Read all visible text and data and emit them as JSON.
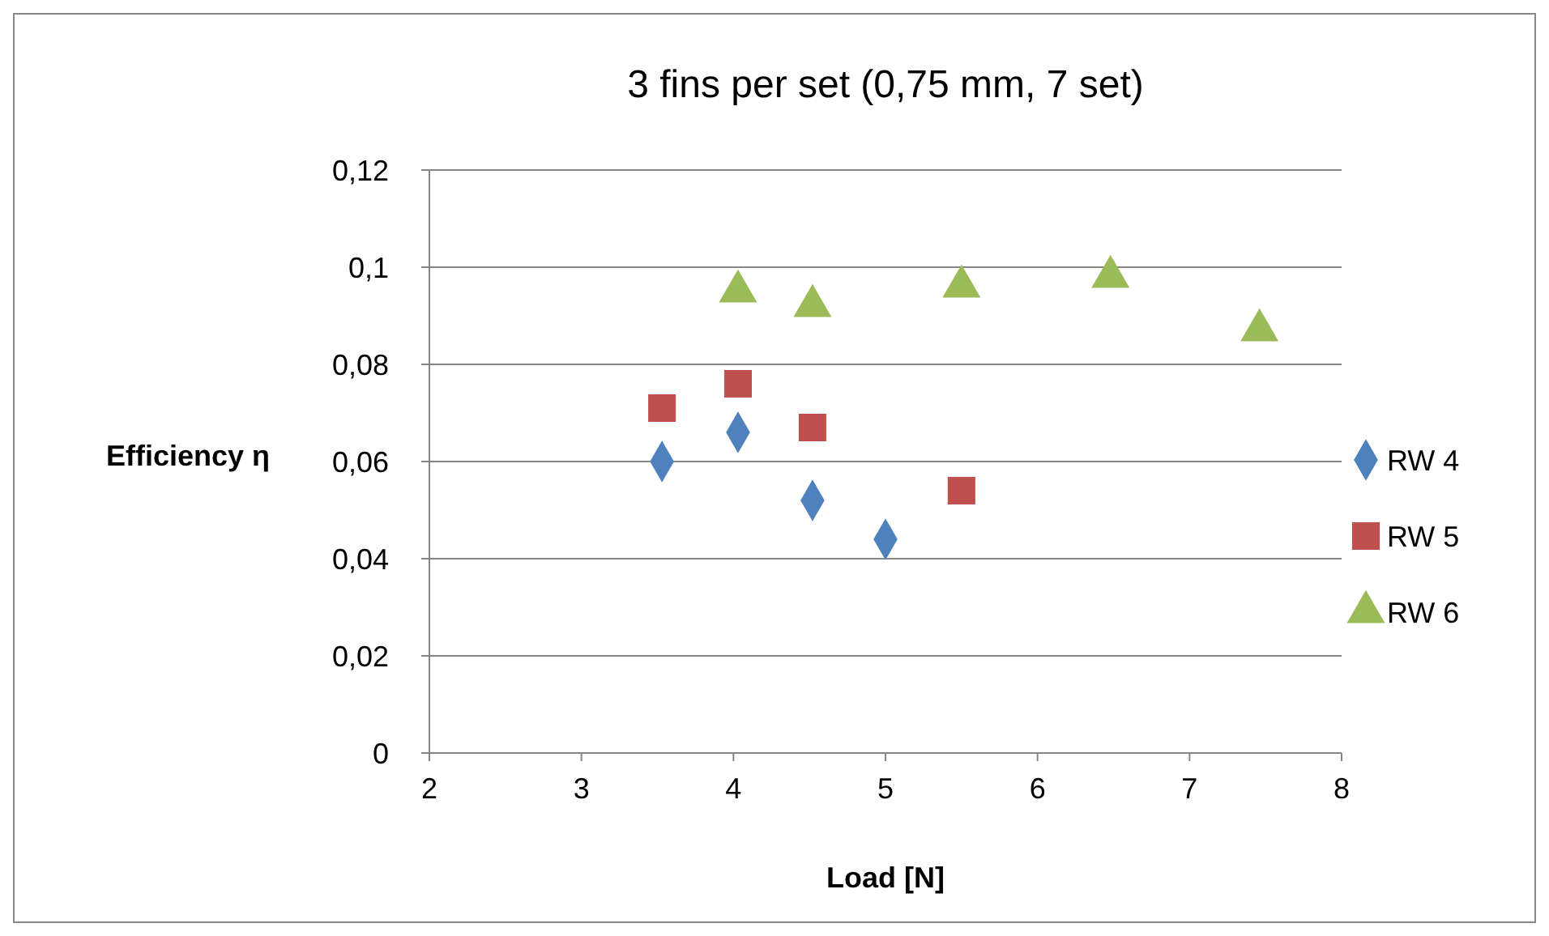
{
  "chart_data": {
    "type": "scatter",
    "title": "3 fins per set (0,75 mm, 7 set)",
    "xlabel": "Load [N]",
    "ylabel": "Efficiency η",
    "xlim": [
      2,
      8
    ],
    "xticks": [
      2,
      3,
      4,
      5,
      6,
      7,
      8
    ],
    "ylim": [
      0,
      0.12
    ],
    "yticks": [
      {
        "value": 0,
        "label": "0"
      },
      {
        "value": 0.02,
        "label": "0,02"
      },
      {
        "value": 0.04,
        "label": "0,04"
      },
      {
        "value": 0.06,
        "label": "0,06"
      },
      {
        "value": 0.08,
        "label": "0,08"
      },
      {
        "value": 0.1,
        "label": "0,1"
      },
      {
        "value": 0.12,
        "label": "0,12"
      }
    ],
    "grid": "y",
    "legend": "right",
    "series": [
      {
        "name": "RW 4",
        "color": "#4f81bd",
        "marker": "diamond",
        "x": [
          3.53,
          4.03,
          4.52,
          5.0
        ],
        "values": [
          0.06,
          0.066,
          0.052,
          0.044
        ]
      },
      {
        "name": "RW 5",
        "color": "#c0504d",
        "marker": "square",
        "x": [
          3.53,
          4.03,
          4.52,
          5.5
        ],
        "values": [
          0.071,
          0.076,
          0.067,
          0.054
        ]
      },
      {
        "name": "RW 6",
        "color": "#9bbb59",
        "marker": "triangle",
        "x": [
          4.03,
          4.52,
          5.5,
          6.48,
          7.46
        ],
        "values": [
          0.095,
          0.092,
          0.096,
          0.098,
          0.087
        ]
      }
    ]
  }
}
